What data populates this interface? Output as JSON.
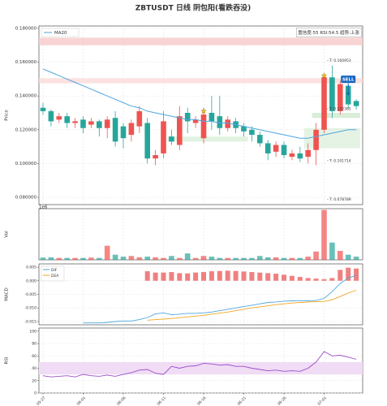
{
  "chart_data": [
    {
      "type": "candlestick",
      "title": "ZBTUSDT  日线  阴包阳(看跌吞没)",
      "y_label": "Price",
      "categories": [
        "05-27",
        null,
        null,
        null,
        null,
        "06-01",
        null,
        null,
        null,
        null,
        "06-06",
        null,
        null,
        null,
        null,
        "06-11",
        null,
        null,
        null,
        null,
        "06-16",
        null,
        null,
        null,
        null,
        "06-21",
        null,
        null,
        null,
        null,
        "06-26",
        null,
        null,
        null,
        null,
        "07-01",
        null,
        null,
        null,
        null
      ],
      "open": [
        0.133,
        0.131,
        0.126,
        0.128,
        0.124,
        0.126,
        0.123,
        0.125,
        0.121,
        0.127,
        0.122,
        0.117,
        0.122,
        0.124,
        0.103,
        0.106,
        0.116,
        0.111,
        0.13,
        0.124,
        0.115,
        0.13,
        0.128,
        0.121,
        0.125,
        0.122,
        0.12,
        0.117,
        0.112,
        0.107,
        0.111,
        0.104,
        0.106,
        0.104,
        0.108,
        0.12,
        0.151,
        0.131,
        0.146,
        0.137
      ],
      "high": [
        0.136,
        0.132,
        0.13,
        0.13,
        0.127,
        0.128,
        0.127,
        0.126,
        0.128,
        0.131,
        0.124,
        0.126,
        0.134,
        0.127,
        0.108,
        0.131,
        0.12,
        0.134,
        0.133,
        0.128,
        0.133,
        0.14,
        0.14,
        0.128,
        0.127,
        0.124,
        0.122,
        0.119,
        0.114,
        0.113,
        0.113,
        0.108,
        0.11,
        0.112,
        0.124,
        0.153,
        0.158,
        0.149,
        0.148,
        0.138
      ],
      "low": [
        0.129,
        0.122,
        0.124,
        0.121,
        0.121,
        0.118,
        0.121,
        0.116,
        0.115,
        0.11,
        0.109,
        0.113,
        0.118,
        0.1,
        0.099,
        0.103,
        0.111,
        0.108,
        0.118,
        0.121,
        0.112,
        0.12,
        0.117,
        0.119,
        0.118,
        0.116,
        0.113,
        0.11,
        0.102,
        0.104,
        0.103,
        0.102,
        0.101,
        0.1,
        0.099,
        0.118,
        0.127,
        0.129,
        0.133,
        0.132
      ],
      "close": [
        0.131,
        0.125,
        0.128,
        0.124,
        0.125,
        0.121,
        0.125,
        0.121,
        0.126,
        0.113,
        0.115,
        0.124,
        0.131,
        0.103,
        0.105,
        0.125,
        0.113,
        0.128,
        0.125,
        0.126,
        0.129,
        0.125,
        0.121,
        0.126,
        0.121,
        0.119,
        0.117,
        0.112,
        0.106,
        0.111,
        0.105,
        0.106,
        0.103,
        0.108,
        0.12,
        0.151,
        0.131,
        0.147,
        0.135,
        0.134
      ],
      "up_color": "#ef5350",
      "down_color": "#26a69a",
      "ma": {
        "name": "MA20",
        "color": "#4da6e0",
        "values": [
          0.156,
          0.154,
          0.152,
          0.15,
          0.148,
          0.146,
          0.144,
          0.142,
          0.14,
          0.138,
          0.136,
          0.134,
          0.133,
          0.131,
          0.13,
          0.129,
          0.128,
          0.127,
          0.126,
          0.126,
          0.125,
          0.125,
          0.124,
          0.124,
          0.123,
          0.122,
          0.121,
          0.12,
          0.119,
          0.118,
          0.117,
          0.116,
          0.115,
          0.115,
          0.116,
          0.117,
          0.118,
          0.119,
          0.12,
          0.12
        ]
      },
      "legend": "upper left",
      "info_box": "置信度:55  RSI:54.5  趋势:上涨",
      "ylim": [
        0.0757,
        0.1814
      ],
      "yticks": [
        {
          "value": 0.08,
          "label": "0.080000"
        },
        {
          "value": 0.1,
          "label": "0.100000"
        },
        {
          "value": 0.12,
          "label": "0.120000"
        },
        {
          "value": 0.14,
          "label": "0.140000"
        },
        {
          "value": 0.16,
          "label": "0.160000"
        },
        {
          "value": 0.18,
          "label": "0.180000"
        }
      ],
      "grid": true,
      "zones": [
        {
          "lo": 0.17,
          "hi": 0.1745,
          "color": "#f8c9c9"
        },
        {
          "lo": 0.1475,
          "hi": 0.1505,
          "color": "#fbd9d9"
        },
        {
          "lo": 0.113,
          "hi": 0.116,
          "color": "#d9efd9",
          "from_index": 16,
          "to_index": 25
        },
        {
          "lo": 0.109,
          "hi": 0.121,
          "color": "#dff0df",
          "from_index": 33,
          "to_index": 39
        },
        {
          "lo": 0.127,
          "hi": 0.13,
          "color": "#cfe9cf",
          "from_index": 34,
          "to_index": 39
        }
      ],
      "levels": [
        {
          "value": 0.160953,
          "label": "T: 0.160953",
          "color": "#26a69a"
        },
        {
          "value": 0.132385,
          "label": "T: 0.132385",
          "color": "#777777"
        },
        {
          "value": 0.101714,
          "label": "T: 0.101714",
          "color": "#ef5350"
        },
        {
          "value": 0.078789,
          "label": "T: 0.078789",
          "color": "#ef5350"
        }
      ],
      "markers": [
        {
          "index": 20,
          "y": 0.131
        },
        {
          "index": 35,
          "y": 0.152
        }
      ],
      "signal": {
        "index": 38,
        "y": 0.14,
        "label": "SELL",
        "color": "#1565c0"
      }
    },
    {
      "type": "bar",
      "y_label": "Vol",
      "offset_label": "1e6",
      "values": [
        0.35,
        0.4,
        0.3,
        0.3,
        0.3,
        0.3,
        0.35,
        0.3,
        2.2,
        0.8,
        0.5,
        0.6,
        0.4,
        0.5,
        0.4,
        0.3,
        0.6,
        0.3,
        1.0,
        0.3,
        0.6,
        0.5,
        0.3,
        0.3,
        0.3,
        0.3,
        0.3,
        0.6,
        0.4,
        0.4,
        0.3,
        0.3,
        0.3,
        0.5,
        1.3,
        7.8,
        2.7,
        1.4,
        0.8,
        0.5
      ],
      "ylim": [
        0,
        8
      ]
    },
    {
      "type": "line",
      "y_label": "MACD",
      "series": [
        {
          "name": "DIF",
          "color": "#4da6e0",
          "values": [
            null,
            null,
            null,
            null,
            null,
            -0.0155,
            -0.0155,
            -0.0155,
            -0.0153,
            -0.015,
            -0.0148,
            -0.0148,
            -0.0143,
            -0.0135,
            -0.0122,
            -0.0118,
            -0.0125,
            -0.0123,
            -0.012,
            -0.012,
            -0.0118,
            -0.0115,
            -0.011,
            -0.0105,
            -0.01,
            -0.0095,
            -0.009,
            -0.0085,
            -0.008,
            -0.0078,
            -0.0075,
            -0.0074,
            -0.0073,
            -0.0074,
            -0.0072,
            -0.0065,
            -0.004,
            -0.001,
            0.001,
            0.002
          ]
        },
        {
          "name": "DEA",
          "color": "#f5a623",
          "values": [
            null,
            null,
            null,
            null,
            null,
            null,
            null,
            null,
            null,
            null,
            null,
            null,
            null,
            -0.0145,
            -0.0143,
            -0.0141,
            -0.0139,
            -0.0136,
            -0.0133,
            -0.013,
            -0.0127,
            -0.0123,
            -0.0119,
            -0.0115,
            -0.011,
            -0.0105,
            -0.01,
            -0.0096,
            -0.0092,
            -0.0088,
            -0.0085,
            -0.0082,
            -0.008,
            -0.0078,
            -0.0077,
            -0.0076,
            -0.007,
            -0.0058,
            -0.0045,
            -0.0035
          ]
        }
      ],
      "bars": {
        "color": "#f08080",
        "values": [
          null,
          null,
          null,
          null,
          null,
          null,
          null,
          null,
          null,
          null,
          null,
          null,
          null,
          0.0035,
          0.003,
          0.003,
          0.0032,
          0.0028,
          0.0027,
          0.003,
          0.0032,
          0.0035,
          0.0036,
          0.0037,
          0.0036,
          0.0034,
          0.0032,
          0.003,
          0.0028,
          0.0026,
          0.0022,
          0.0018,
          0.0014,
          0.001,
          0.0008,
          0.0006,
          0.001,
          0.004,
          0.0048,
          0.0045
        ]
      },
      "legend": "upper left",
      "ylim": [
        -0.0162,
        0.0062
      ],
      "yticks": [
        -0.015,
        {
          "value": -0.01,
          "label": "-0.010"
        },
        -0.005,
        {
          "value": 0,
          "label": "0.000"
        },
        0.005
      ],
      "grid": true
    },
    {
      "type": "line",
      "y_label": "RSI",
      "series": [
        {
          "color": "#9b4dca",
          "values": [
            28,
            26,
            27,
            28,
            26,
            30,
            28,
            27,
            29,
            27,
            30,
            33,
            37,
            38,
            32,
            30,
            43,
            40,
            43,
            44,
            48,
            47,
            45,
            46,
            43,
            43,
            40,
            38,
            36,
            37,
            35,
            36,
            35,
            40,
            50,
            67,
            60,
            61,
            58,
            54.5
          ]
        }
      ],
      "band": [
        30,
        50
      ],
      "band_color": "#f0dcf5",
      "ylim": [
        0,
        105
      ],
      "yticks": [
        0,
        20,
        40,
        60,
        80,
        100
      ],
      "grid": true
    }
  ]
}
